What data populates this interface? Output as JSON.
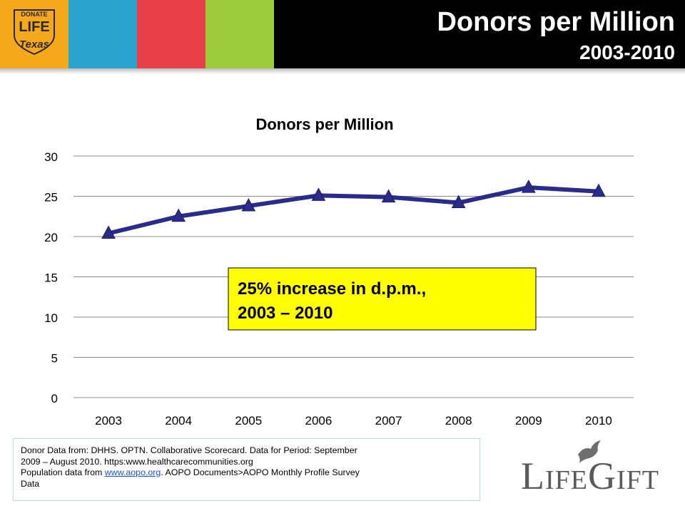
{
  "header": {
    "title": "Donors per Million",
    "subtitle": "2003-2010",
    "logo": {
      "line1": "DONATE",
      "line2": "LIFE",
      "line3": "Texas"
    },
    "colors": {
      "logo_bg": "#f6a81c",
      "teal": "#2aa3cc",
      "red": "#e63f47",
      "lime": "#9ccb3b",
      "bar": "#000000"
    }
  },
  "chart_data": {
    "type": "line",
    "title": "Donors per Million",
    "categories": [
      "2003",
      "2004",
      "2005",
      "2006",
      "2007",
      "2008",
      "2009",
      "2010"
    ],
    "series": [
      {
        "values": [
          20.4,
          22.5,
          23.8,
          25.1,
          24.9,
          24.2,
          26.1,
          25.6
        ],
        "color": "#2b2b8c",
        "marker": "triangle"
      }
    ],
    "y_ticks": [
      "0",
      "5",
      "10",
      "15",
      "20",
      "25",
      "30"
    ],
    "ylim": [
      0,
      30
    ],
    "grid": true,
    "legend": "none",
    "annotation": {
      "line1": "25% increase in d.p.m.,",
      "line2": "2003 – 2010",
      "bg": "#ffff00"
    }
  },
  "footnote": {
    "line1": "Donor Data from:  DHHS.  OPTN.  Collaborative Scorecard.  Data for Period:  September",
    "line2": "2009 – August 2010.  https:www.healthcarecommunities.org",
    "line3_prefix": "Population data from ",
    "link_text": "www.aopo.org",
    "line3_suffix": ". AOPO Documents>AOPO Monthly Profile Survey",
    "line4": "Data"
  },
  "brand": {
    "l": "L",
    "ife": "IFE",
    "g": "G",
    "ift": "IFT",
    "dove_icon": "dove-icon"
  }
}
